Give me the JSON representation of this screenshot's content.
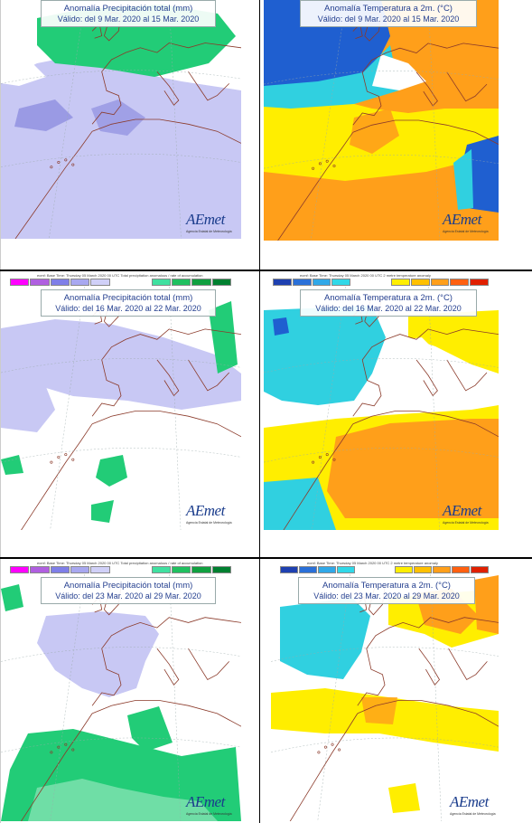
{
  "panels": [
    {
      "title": "Anomalía Precipitación total (mm)",
      "subtitle": "Válido: del 9 Mar. 2020 al 15 Mar. 2020"
    },
    {
      "title": "Anomalía Temperatura a 2m. (°C)",
      "subtitle": "Válido: del 9 Mar. 2020 al 15 Mar. 2020"
    },
    {
      "title": "Anomalía Precipitación total (mm)",
      "subtitle": "Válido: del 16 Mar. 2020 al 22 Mar. 2020",
      "legend_caption": "ecmf: Base Time: Thursday 05 March 2020 00 UTC Total precipitation anomalous / rate of accumulation"
    },
    {
      "title": "Anomalía Temperatura a 2m. (°C)",
      "subtitle": "Válido: del 16 Mar. 2020 al 22 Mar. 2020",
      "legend_caption": "ecmf: Base Time: Thursday 05 March 2020 00 UTC 2 metre temperature anomaly"
    },
    {
      "title": "Anomalía Precipitación total (mm)",
      "subtitle": "Válido: del 23 Mar. 2020 al 29 Mar. 2020",
      "legend_caption": "ecmf: Base Time: Thursday 05 March 2020 00 UTC Total precipitation anomalous / rate of accumulation"
    },
    {
      "title": "Anomalía Temperatura a 2m. (°C)",
      "subtitle": "Válido: del 23 Mar. 2020 al 29 Mar. 2020",
      "legend_caption": "ecmf: Base Time: Thursday 05 March 2020 00 UTC 2 metre temperature anomaly"
    }
  ],
  "logo": {
    "text": "AEmet",
    "subtext": "Agencia Estatal de Meteorología"
  },
  "colors": {
    "precip_wet": "#22cc77",
    "precip_dry": "#c8c8f4",
    "precip_dry_strong": "#8f8fe0",
    "temp_cold_strong": "#1f5fd0",
    "temp_cold": "#30d0e0",
    "temp_warm": "#ffee00",
    "temp_warm_strong": "#ff9f1a",
    "coast": "#8b3a2a"
  },
  "legend_precip_colors": [
    "#ff00ff",
    "#b05fe0",
    "#7f7fe8",
    "#a8a8f0",
    "#d0d0f8",
    "#ffffff",
    "#ffffff",
    "#40e0a0",
    "#20c060",
    "#10a040",
    "#008030"
  ],
  "legend_temp_colors": [
    "#1e40b0",
    "#2a70d8",
    "#30a8e8",
    "#30d8e8",
    "#ffffff",
    "#ffffff",
    "#ffee00",
    "#ffc000",
    "#ff9f1a",
    "#ff6010",
    "#e02000"
  ]
}
